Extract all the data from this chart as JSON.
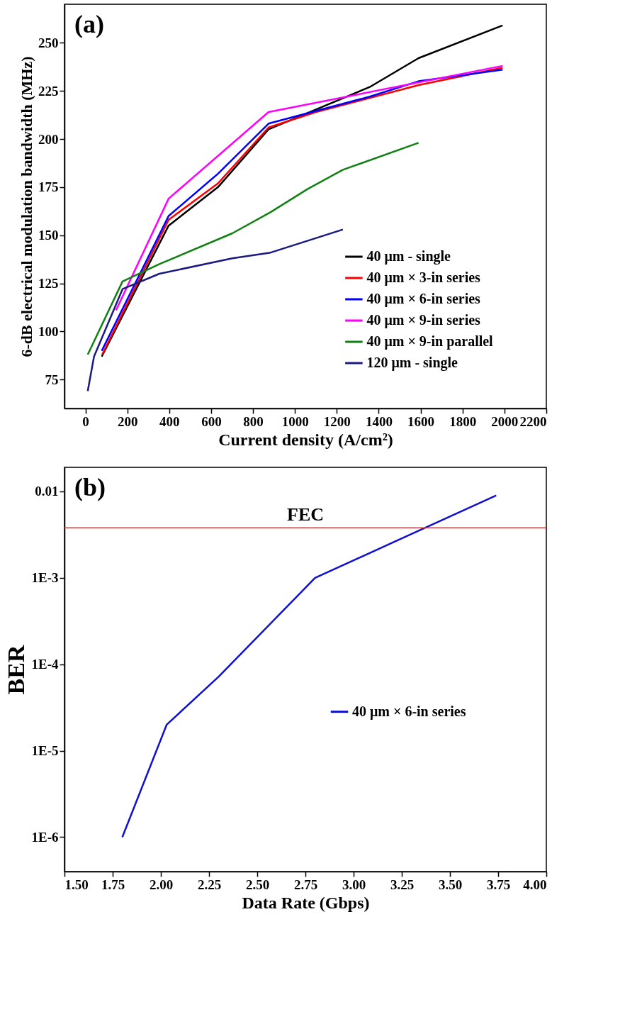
{
  "chart_data": [
    {
      "type": "line",
      "xlabel": "Current density (A/cm²)",
      "ylabel": "6-dB electrical modulation bandwidth (MHz)",
      "annotations": [
        "(a)"
      ],
      "xlim": [
        -100,
        2200
      ],
      "xticks": [
        0,
        200,
        400,
        600,
        800,
        1000,
        1200,
        1400,
        1600,
        1800,
        2000,
        2200
      ],
      "ylim": [
        60,
        270
      ],
      "yticks": [
        75,
        100,
        125,
        150,
        175,
        200,
        225,
        250
      ],
      "grid": false,
      "legend": "bottom right",
      "series": [
        {
          "name": "40 μm - single",
          "color": "#000000",
          "x": [
            78,
            397,
            633,
            874,
            1357,
            1590,
            1991
          ],
          "values": [
            87,
            155,
            175,
            205,
            227,
            242,
            259
          ]
        },
        {
          "name": "40 μm × 3-in series",
          "color": "#ff0000",
          "x": [
            80,
            397,
            633,
            874,
            1100,
            1590,
            1991
          ],
          "values": [
            88,
            158,
            177,
            206,
            214,
            228,
            237
          ]
        },
        {
          "name": "40 μm × 6-in series",
          "color": "#0000ff",
          "x": [
            78,
            397,
            633,
            874,
            1357,
            1590,
            1991
          ],
          "values": [
            90,
            160,
            182,
            208,
            222,
            230,
            236
          ]
        },
        {
          "name": "40 μm × 9-in series",
          "color": "#ff00ff",
          "x": [
            146,
            397,
            874,
            1991
          ],
          "values": [
            111,
            169,
            214,
            238
          ]
        },
        {
          "name": "40 μm × 9-in parallel",
          "color": "#108010",
          "x": [
            11,
            177,
            353,
            701,
            884,
            1060,
            1229,
            1590
          ],
          "values": [
            88,
            126,
            135,
            151,
            162,
            174,
            184,
            198
          ]
        },
        {
          "name": "120 μm - single",
          "color": "#1a1a80",
          "x": [
            11,
            41,
            177,
            353,
            701,
            884,
            1229
          ],
          "values": [
            69,
            87,
            122,
            130,
            138,
            141,
            153
          ]
        }
      ]
    },
    {
      "type": "line",
      "xlabel": "Data Rate (Gbps)",
      "ylabel": "BER",
      "annotations": [
        "(b)"
      ],
      "log": "y",
      "xlim": [
        1.5,
        4.0
      ],
      "xticks": [
        {
          "value": 1.5,
          "label": "1.50"
        },
        {
          "value": 1.75,
          "label": "1.75"
        },
        {
          "value": 2.0,
          "label": "2.00"
        },
        {
          "value": 2.25,
          "label": "2.25"
        },
        {
          "value": 2.5,
          "label": "2.50"
        },
        {
          "value": 2.75,
          "label": "2.75"
        },
        {
          "value": 3.0,
          "label": "3.00"
        },
        {
          "value": 3.25,
          "label": "3.25"
        },
        {
          "value": 3.5,
          "label": "3.50"
        },
        {
          "value": 3.75,
          "label": "3.75"
        },
        {
          "value": 4.0,
          "label": "4.00"
        }
      ],
      "ylim": [
        4e-07,
        0.019
      ],
      "yticks": [
        {
          "value": 1e-06,
          "label": "1E-6"
        },
        {
          "value": 1e-05,
          "label": "1E-5"
        },
        {
          "value": 0.0001,
          "label": "1E-4"
        },
        {
          "value": 0.001,
          "label": "1E-3"
        },
        0.01
      ],
      "grid": false,
      "legend": "right",
      "ref_lines": [
        {
          "axis": "y",
          "value": 0.0038,
          "label": "FEC",
          "color": "#d04040"
        }
      ],
      "series": [
        {
          "name": "40 μm × 6-in series",
          "color": "#1010d0",
          "x": [
            1.8,
            2.03,
            2.3,
            2.8,
            3.74
          ],
          "values": [
            1e-06,
            2e-05,
            7.2e-05,
            0.001,
            0.009
          ]
        }
      ]
    }
  ]
}
